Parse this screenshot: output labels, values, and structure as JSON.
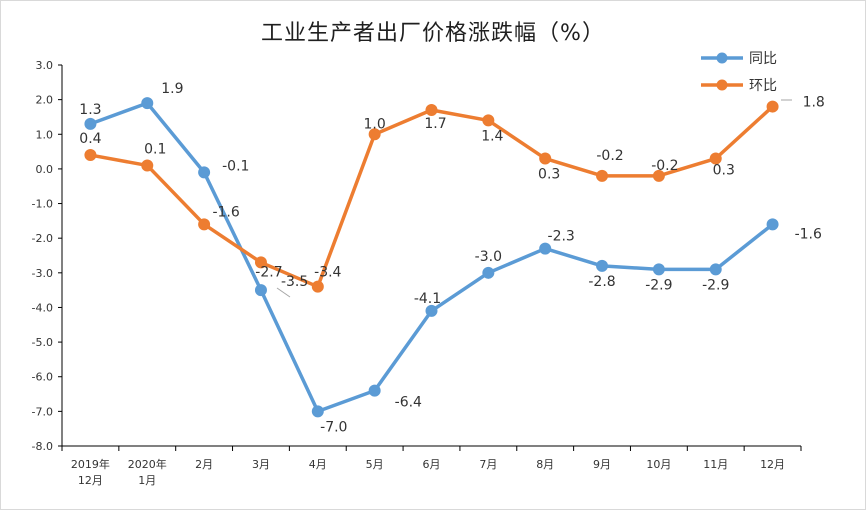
{
  "chart_data": {
    "type": "line",
    "title": "工业生产者出厂价格涨跌幅（%）",
    "categories": [
      [
        "2019年",
        "12月"
      ],
      [
        "2020年",
        "1月"
      ],
      [
        "2月"
      ],
      [
        "3月"
      ],
      [
        "4月"
      ],
      [
        "5月"
      ],
      [
        "6月"
      ],
      [
        "7月"
      ],
      [
        "8月"
      ],
      [
        "9月"
      ],
      [
        "10月"
      ],
      [
        "11月"
      ],
      [
        "12月"
      ]
    ],
    "y_ticks": [
      "3.0",
      "2.0",
      "1.0",
      "0.0",
      "-1.0",
      "-2.0",
      "-3.0",
      "-4.0",
      "-5.0",
      "-6.0",
      "-7.0",
      "-8.0"
    ],
    "ylim": [
      -8,
      3
    ],
    "series": [
      {
        "name": "同比",
        "color": "#5b9bd5",
        "values": [
          1.3,
          1.9,
          -0.1,
          -3.5,
          -7.0,
          -6.4,
          -4.1,
          -3.0,
          -2.3,
          -2.8,
          -2.9,
          -2.9,
          -1.6
        ],
        "labels": [
          "1.3",
          "1.9",
          "-0.1",
          "-3.5",
          "-7.0",
          "-6.4",
          "-4.1",
          "-3.0",
          "-2.3",
          "-2.8",
          "-2.9",
          "-2.9",
          "-1.6"
        ]
      },
      {
        "name": "环比",
        "color": "#ed7d31",
        "values": [
          0.4,
          0.1,
          -1.6,
          -2.7,
          -3.4,
          1.0,
          1.7,
          1.4,
          0.3,
          -0.2,
          -0.2,
          0.3,
          1.8
        ],
        "labels": [
          "0.4",
          "0.1",
          "-1.6",
          "-2.7",
          "-3.4",
          "1.0",
          "1.7",
          "1.4",
          "0.3",
          "-0.2",
          "-0.2",
          "0.3",
          "1.8"
        ]
      }
    ],
    "legend_position": "top-right",
    "grid": false
  }
}
